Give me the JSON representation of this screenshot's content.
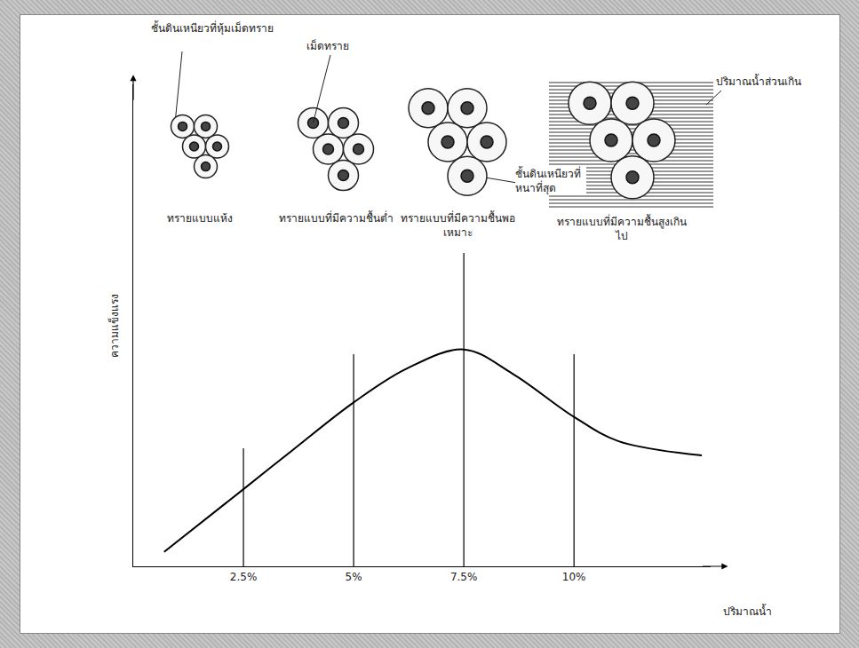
{
  "chart_data": {
    "type": "line",
    "x_label": "ปริมาณน้ำ",
    "y_label": "ความแข็งแรง",
    "x": [
      0.7,
      2.5,
      3.6,
      5,
      6.2,
      7.5,
      8.6,
      10,
      11,
      12.9
    ],
    "values": [
      3,
      16,
      24,
      34,
      41,
      45,
      40,
      31,
      26,
      23
    ],
    "color": "#000000",
    "xlim": [
      0,
      13.1
    ],
    "xticks": [
      {
        "value": 2.5,
        "label": "2.5%"
      },
      {
        "value": 5,
        "label": "5%"
      },
      {
        "value": 7.5,
        "label": "7.5%"
      },
      {
        "value": 10,
        "label": "10%"
      }
    ],
    "ylim": [
      0,
      100
    ],
    "yticks": [],
    "tick_labels": "x",
    "grid": false,
    "illustrations": [
      {
        "caption": "ทรายแบบแห้ง",
        "note": "ชั้นดินเหนียวที่หุ้มเม็ดทราย"
      },
      {
        "caption": "ทรายแบบที่มีความชื้นต่ำ",
        "note": "เม็ดทราย"
      },
      {
        "caption": "ทรายแบบที่มีความชื้นพอเหมาะ",
        "note": "ชั้นดินเหนียวที่หนาที่สุด"
      },
      {
        "caption": "ทรายแบบที่มีความชื้นสูงเกินไป",
        "note": "ปริมาณน้ำส่วนเกิน"
      }
    ]
  }
}
